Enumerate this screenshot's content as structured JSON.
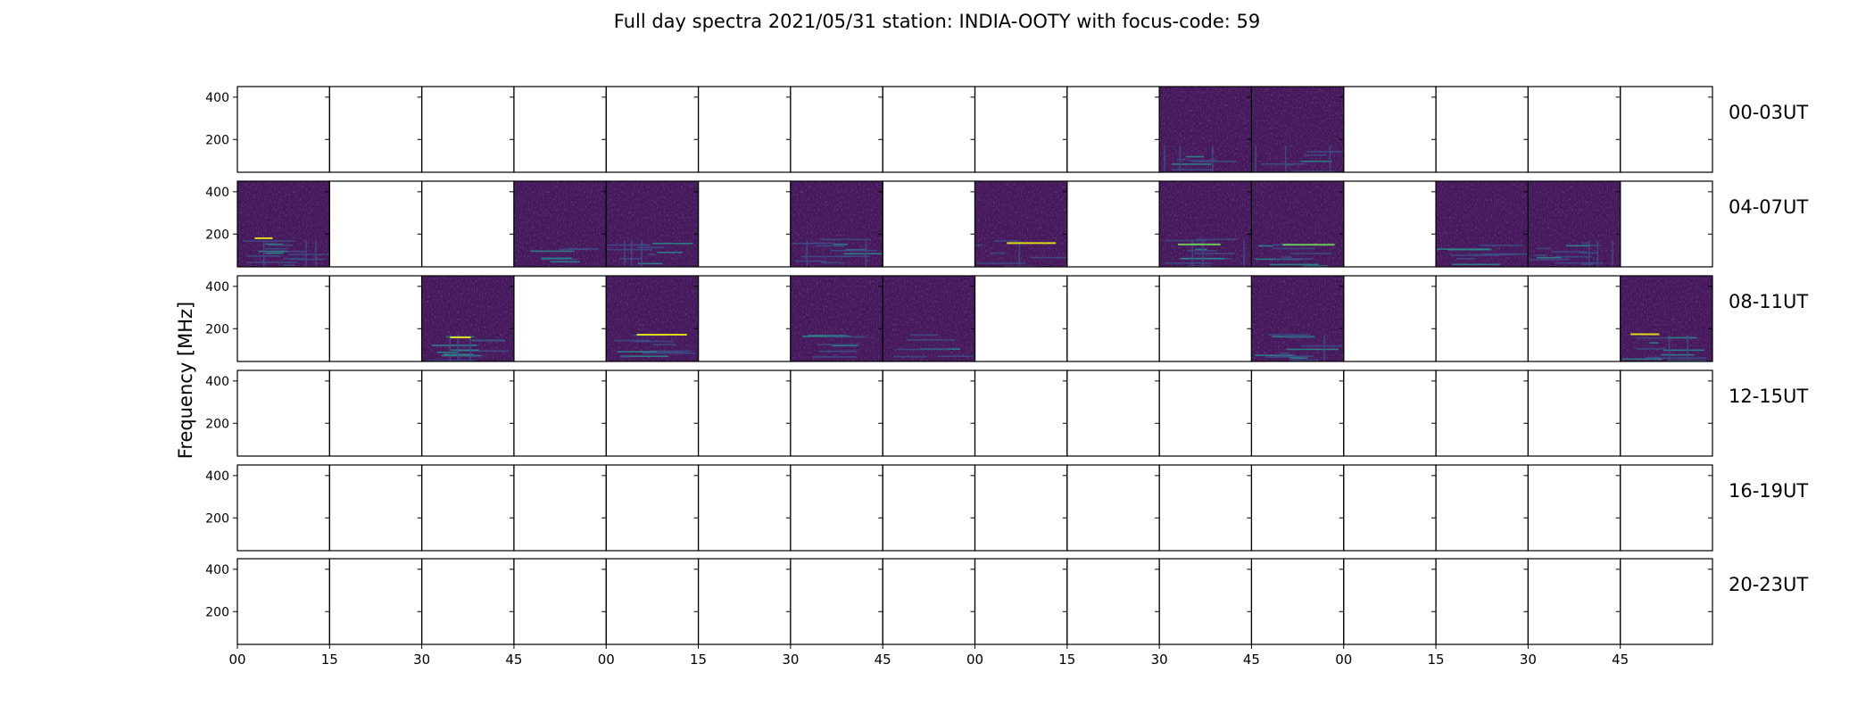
{
  "title": "Full day spectra 2021/05/31 station: INDIA-OOTY with focus-code: 59",
  "ylabel": "Frequency [MHz]",
  "colors": {
    "background": "#ffffff",
    "frame": "#000000",
    "spectrum_base": "#44185a",
    "spectrum_mid": "#3d4f8a",
    "spectrum_teal": "#2a8c8c",
    "spectrum_green": "#6bcd5a",
    "spectrum_yellow": "#e7e419"
  },
  "chart_data": {
    "type": "heatmap",
    "title": "Full day spectra 2021/05/31 station: INDIA-OOTY with focus-code: 59",
    "ylabel": "Frequency [MHz]",
    "xlabel": "",
    "colormap": "viridis",
    "ylim": [
      45,
      450
    ],
    "y_ticks": [
      200,
      400
    ],
    "x_tick_labels": [
      "00",
      "15",
      "30",
      "45",
      "00",
      "15",
      "30",
      "45",
      "00",
      "15",
      "30",
      "45",
      "00",
      "15",
      "30",
      "45"
    ],
    "panels_per_row": 16,
    "panel_minutes": 15,
    "rows": [
      {
        "label": "00-03UT",
        "available": [
          10,
          11
        ]
      },
      {
        "label": "04-07UT",
        "available": [
          0,
          3,
          4,
          6,
          8,
          10,
          11,
          13,
          14
        ]
      },
      {
        "label": "08-11UT",
        "available": [
          2,
          4,
          6,
          7,
          11,
          15
        ]
      },
      {
        "label": "12-15UT",
        "available": []
      },
      {
        "label": "16-19UT",
        "available": []
      },
      {
        "label": "20-23UT",
        "available": []
      }
    ]
  }
}
